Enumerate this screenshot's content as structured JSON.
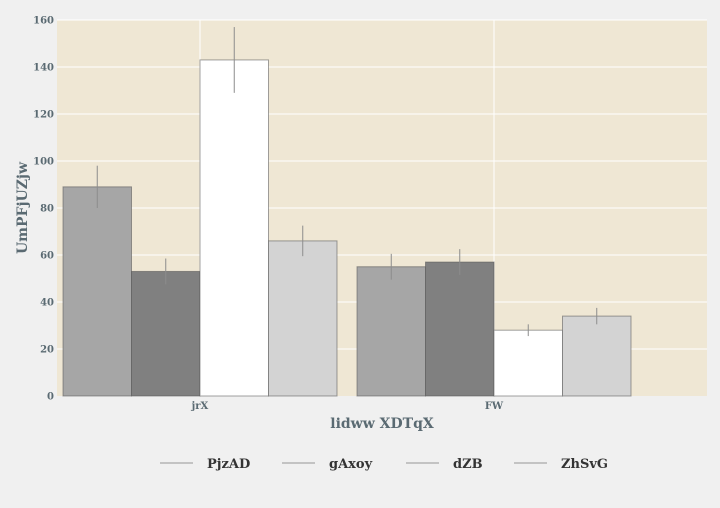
{
  "chart_data": {
    "type": "bar",
    "title": "",
    "xlabel": "lidww XDTqX",
    "ylabel": "UmPFjUZjw",
    "categories": [
      "jrX",
      "FW"
    ],
    "ylim": [
      0,
      160
    ],
    "yticks": [
      0,
      20,
      40,
      60,
      80,
      100,
      120,
      140,
      160
    ],
    "grid": true,
    "legend_position": "bottom",
    "series": [
      {
        "name": "PjzAD",
        "values": [
          89,
          55
        ],
        "errors": [
          9,
          5.5
        ],
        "color": "#a6a6a6"
      },
      {
        "name": "gAxoy",
        "values": [
          53,
          57
        ],
        "errors": [
          5.5,
          5.5
        ],
        "color": "#808080"
      },
      {
        "name": "dZB",
        "values": [
          143,
          28
        ],
        "errors": [
          14,
          2.5
        ],
        "color": "#ffffff"
      },
      {
        "name": "ZhSvG",
        "values": [
          66,
          34
        ],
        "errors": [
          6.5,
          3.5
        ],
        "color": "#d3d3d3"
      }
    ],
    "colors": {
      "plot_background": "#efe7d4",
      "page_background": "#f0f0f0",
      "grid": "#ffffff",
      "error_bar": "#8c8c8c"
    }
  }
}
